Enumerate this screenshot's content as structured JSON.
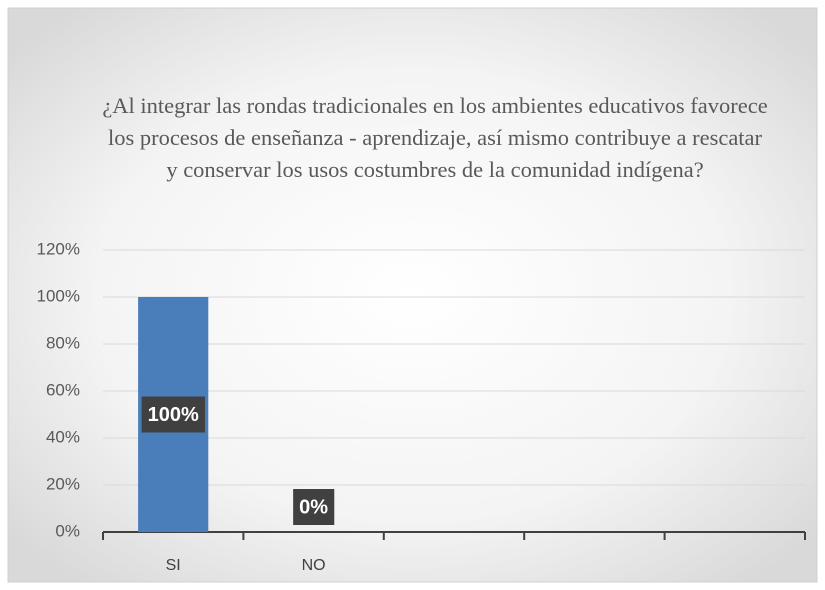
{
  "chart_data": {
    "type": "bar",
    "title": "¿Al integrar las rondas tradicionales en los ambientes educativos favorece los procesos de enseñanza - aprendizaje, así mismo contribuye a rescatar y conservar los usos costumbres de la comunidad indígena?",
    "categories": [
      "SI",
      "NO",
      null,
      null,
      null
    ],
    "values": [
      100,
      0,
      null,
      null,
      null
    ],
    "value_labels": [
      "100%",
      "0%",
      null,
      null,
      null
    ],
    "color": "#4a7ebb",
    "ylim": [
      0,
      120
    ],
    "yticks": [
      {
        "value": 0,
        "label": "0%"
      },
      {
        "value": 20,
        "label": "20%"
      },
      {
        "value": 40,
        "label": "40%"
      },
      {
        "value": 60,
        "label": "60%"
      },
      {
        "value": 80,
        "label": "80%"
      },
      {
        "value": 100,
        "label": "100%"
      },
      {
        "value": 120,
        "label": "120%"
      }
    ],
    "grid": true
  }
}
